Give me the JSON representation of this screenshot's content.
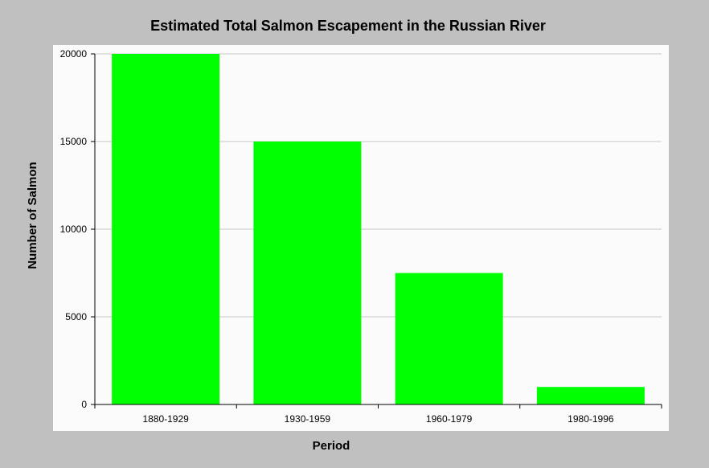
{
  "chart_data": {
    "type": "bar",
    "title": "Estimated Total Salmon Escapement in the Russian River",
    "xlabel": "Period",
    "ylabel": "Number of Salmon",
    "categories": [
      "1880-1929",
      "1930-1959",
      "1960-1979",
      "1980-1996"
    ],
    "values": [
      20000,
      15000,
      7500,
      1000
    ],
    "ylim": [
      0,
      20000
    ],
    "yticks": [
      0,
      5000,
      10000,
      15000,
      20000
    ],
    "grid": true,
    "legend": "none",
    "bar_color": "#00ff00",
    "background_color": "#c0c0c0",
    "plot_background_color": "#fbfbfb"
  }
}
